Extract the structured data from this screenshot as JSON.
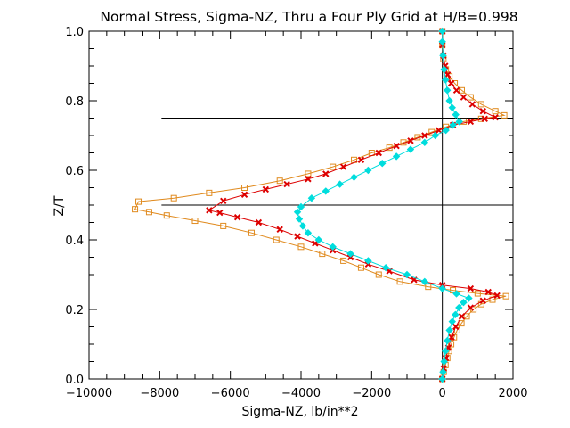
{
  "chart_data": {
    "type": "line",
    "title": "Normal Stress, Sigma-NZ, Thru a Four Ply Grid at H/B=0.998",
    "xlabel": "Sigma-NZ,  lb/in**2",
    "ylabel": "Z/T",
    "xlim": [
      -10000,
      2000
    ],
    "ylim": [
      0.0,
      1.0
    ],
    "xticks": [
      -10000,
      -8000,
      -6000,
      -4000,
      -2000,
      0,
      2000
    ],
    "xtick_labels": [
      "−10000",
      "−8000",
      "−6000",
      "−4000",
      "−2000",
      "0",
      "2000"
    ],
    "yticks": [
      0.0,
      0.2,
      0.4,
      0.6,
      0.8,
      1.0
    ],
    "ytick_labels": [
      "0.0",
      "0.2",
      "0.4",
      "0.6",
      "0.8",
      "1.0"
    ],
    "ply_interfaces": [
      0.25,
      0.5,
      0.75
    ],
    "zero_line_x": 0,
    "grid": false,
    "legend": "none",
    "series": [
      {
        "color": "#e08a1e",
        "marker": "square",
        "points": [
          [
            0,
            0.0
          ],
          [
            40,
            0.02
          ],
          [
            90,
            0.04
          ],
          [
            140,
            0.06
          ],
          [
            190,
            0.08
          ],
          [
            250,
            0.1
          ],
          [
            330,
            0.12
          ],
          [
            420,
            0.14
          ],
          [
            540,
            0.16
          ],
          [
            690,
            0.18
          ],
          [
            880,
            0.2
          ],
          [
            1100,
            0.215
          ],
          [
            1420,
            0.228
          ],
          [
            1800,
            0.238
          ],
          [
            1000,
            0.246
          ],
          [
            300,
            0.255
          ],
          [
            -400,
            0.265
          ],
          [
            -1200,
            0.28
          ],
          [
            -1800,
            0.3
          ],
          [
            -2300,
            0.32
          ],
          [
            -2800,
            0.34
          ],
          [
            -3400,
            0.36
          ],
          [
            -4000,
            0.38
          ],
          [
            -4700,
            0.4
          ],
          [
            -5400,
            0.42
          ],
          [
            -6200,
            0.44
          ],
          [
            -7000,
            0.455
          ],
          [
            -7800,
            0.47
          ],
          [
            -8300,
            0.48
          ],
          [
            -8700,
            0.488
          ],
          [
            -8600,
            0.51
          ],
          [
            -7600,
            0.52
          ],
          [
            -6600,
            0.535
          ],
          [
            -5600,
            0.55
          ],
          [
            -4600,
            0.57
          ],
          [
            -3800,
            0.59
          ],
          [
            -3100,
            0.61
          ],
          [
            -2500,
            0.63
          ],
          [
            -2000,
            0.65
          ],
          [
            -1500,
            0.665
          ],
          [
            -1100,
            0.68
          ],
          [
            -700,
            0.695
          ],
          [
            -300,
            0.71
          ],
          [
            100,
            0.725
          ],
          [
            600,
            0.74
          ],
          [
            1100,
            0.748
          ],
          [
            1750,
            0.758
          ],
          [
            1500,
            0.77
          ],
          [
            1100,
            0.79
          ],
          [
            800,
            0.81
          ],
          [
            550,
            0.83
          ],
          [
            350,
            0.85
          ],
          [
            200,
            0.87
          ],
          [
            100,
            0.89
          ],
          [
            30,
            0.92
          ],
          [
            0,
            0.96
          ],
          [
            0,
            1.0
          ]
        ]
      },
      {
        "color": "#dd0000",
        "marker": "x",
        "points": [
          [
            0,
            0.0
          ],
          [
            40,
            0.03
          ],
          [
            100,
            0.06
          ],
          [
            170,
            0.09
          ],
          [
            260,
            0.12
          ],
          [
            380,
            0.15
          ],
          [
            550,
            0.18
          ],
          [
            800,
            0.205
          ],
          [
            1150,
            0.225
          ],
          [
            1550,
            0.24
          ],
          [
            1300,
            0.25
          ],
          [
            800,
            0.26
          ],
          [
            0,
            0.27
          ],
          [
            -800,
            0.285
          ],
          [
            -1500,
            0.31
          ],
          [
            -2100,
            0.33
          ],
          [
            -2600,
            0.35
          ],
          [
            -3100,
            0.37
          ],
          [
            -3600,
            0.39
          ],
          [
            -4100,
            0.41
          ],
          [
            -4600,
            0.43
          ],
          [
            -5200,
            0.45
          ],
          [
            -5800,
            0.465
          ],
          [
            -6300,
            0.478
          ],
          [
            -6600,
            0.485
          ],
          [
            -6200,
            0.512
          ],
          [
            -5600,
            0.53
          ],
          [
            -5000,
            0.545
          ],
          [
            -4400,
            0.56
          ],
          [
            -3800,
            0.575
          ],
          [
            -3300,
            0.59
          ],
          [
            -2800,
            0.61
          ],
          [
            -2300,
            0.63
          ],
          [
            -1800,
            0.65
          ],
          [
            -1300,
            0.67
          ],
          [
            -900,
            0.685
          ],
          [
            -500,
            0.7
          ],
          [
            -100,
            0.715
          ],
          [
            300,
            0.73
          ],
          [
            800,
            0.74
          ],
          [
            1200,
            0.748
          ],
          [
            1500,
            0.752
          ],
          [
            1150,
            0.77
          ],
          [
            850,
            0.79
          ],
          [
            600,
            0.81
          ],
          [
            400,
            0.83
          ],
          [
            250,
            0.85
          ],
          [
            150,
            0.875
          ],
          [
            80,
            0.9
          ],
          [
            30,
            0.93
          ],
          [
            0,
            0.96
          ],
          [
            0,
            1.0
          ]
        ]
      },
      {
        "color": "#00dddd",
        "marker": "diamond",
        "points": [
          [
            0,
            0.0
          ],
          [
            20,
            0.02
          ],
          [
            50,
            0.05
          ],
          [
            90,
            0.08
          ],
          [
            140,
            0.11
          ],
          [
            200,
            0.14
          ],
          [
            280,
            0.165
          ],
          [
            370,
            0.185
          ],
          [
            470,
            0.205
          ],
          [
            600,
            0.22
          ],
          [
            750,
            0.232
          ],
          [
            400,
            0.245
          ],
          [
            0,
            0.26
          ],
          [
            -500,
            0.28
          ],
          [
            -1000,
            0.3
          ],
          [
            -1600,
            0.32
          ],
          [
            -2100,
            0.34
          ],
          [
            -2600,
            0.36
          ],
          [
            -3100,
            0.38
          ],
          [
            -3500,
            0.4
          ],
          [
            -3800,
            0.42
          ],
          [
            -3950,
            0.44
          ],
          [
            -4050,
            0.46
          ],
          [
            -4100,
            0.48
          ],
          [
            -4000,
            0.495
          ],
          [
            -3700,
            0.52
          ],
          [
            -3300,
            0.54
          ],
          [
            -2900,
            0.56
          ],
          [
            -2500,
            0.58
          ],
          [
            -2100,
            0.6
          ],
          [
            -1700,
            0.62
          ],
          [
            -1300,
            0.64
          ],
          [
            -900,
            0.66
          ],
          [
            -500,
            0.68
          ],
          [
            -200,
            0.7
          ],
          [
            100,
            0.715
          ],
          [
            300,
            0.73
          ],
          [
            480,
            0.74
          ],
          [
            380,
            0.76
          ],
          [
            280,
            0.78
          ],
          [
            200,
            0.8
          ],
          [
            140,
            0.83
          ],
          [
            90,
            0.86
          ],
          [
            50,
            0.89
          ],
          [
            20,
            0.93
          ],
          [
            0,
            0.97
          ],
          [
            0,
            1.0
          ]
        ]
      }
    ]
  }
}
